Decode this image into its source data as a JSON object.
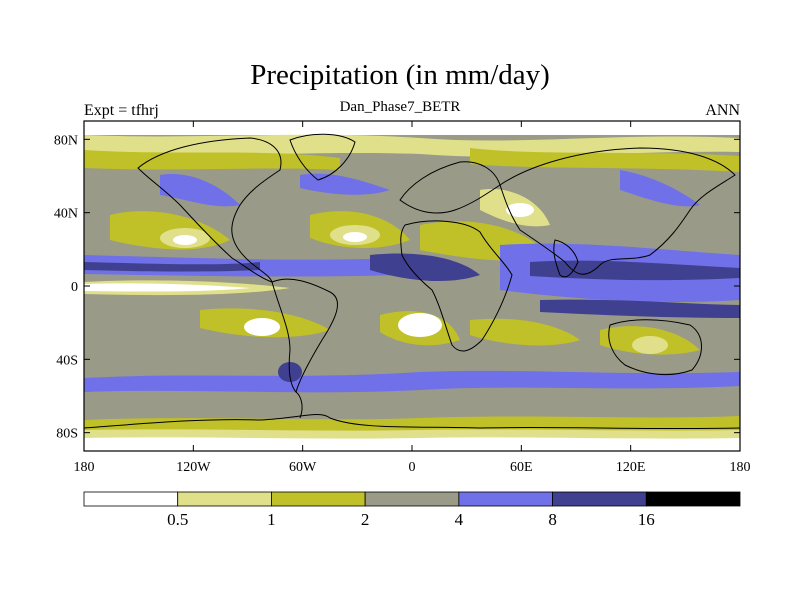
{
  "header": {
    "title": "Precipitation (in mm/day)",
    "subtitle": "Dan_Phase7_BETR",
    "left_label": "Expt = tfhrj",
    "right_label": "ANN"
  },
  "axes": {
    "lon_ticks": [
      "180",
      "120W",
      "60W",
      "0",
      "60E",
      "120E",
      "180"
    ],
    "lat_ticks": [
      "80N",
      "40N",
      "0",
      "40S",
      "80S"
    ],
    "lon_values": [
      -180,
      -120,
      -60,
      0,
      60,
      120,
      180
    ],
    "lat_values": [
      80,
      40,
      0,
      -40,
      -80
    ],
    "lon_range": [
      -180,
      180
    ],
    "lat_range": [
      -90,
      90
    ]
  },
  "colorbar": {
    "labels": [
      "0.5",
      "1",
      "2",
      "4",
      "8",
      "16"
    ],
    "colors": [
      "#ffffff",
      "#e0e08a",
      "#c0c028",
      "#9a9a88",
      "#7070e8",
      "#404090",
      "#000000"
    ]
  }
}
